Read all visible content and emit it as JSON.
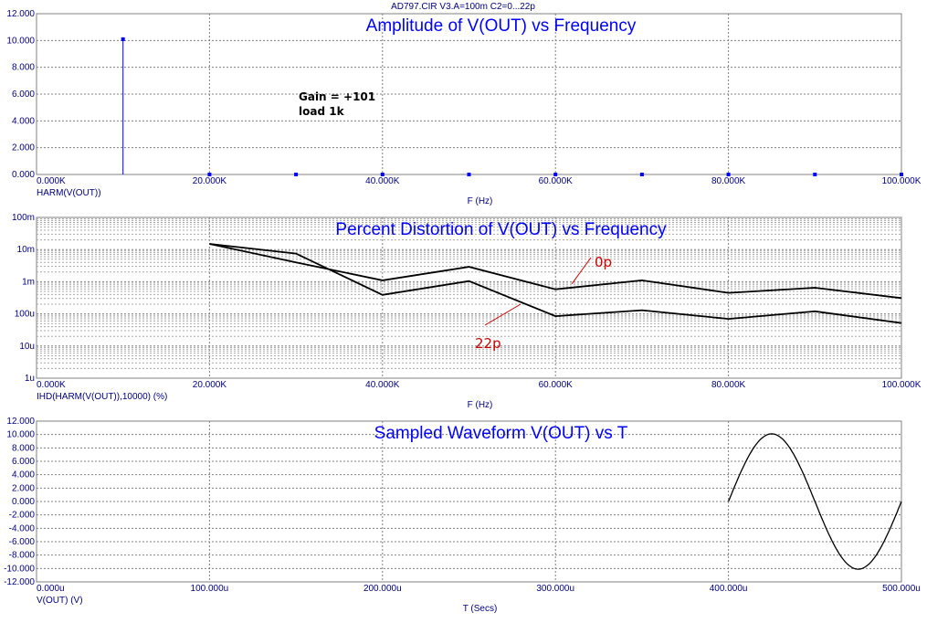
{
  "window": {
    "title": "AD797.CIR V3.A=100m C2=0...22p"
  },
  "colors": {
    "text": "#000080",
    "title": "#0000ff",
    "grid": "#808080",
    "harm": "#0000ff",
    "trace": "#000000",
    "label": "#cc0000"
  },
  "chart_data": [
    {
      "type": "bar",
      "title": "Amplitude of V(OUT) vs Frequency",
      "xlabel": "F (Hz)",
      "ylabel": "HARM(V(OUT))",
      "xlim": [
        0,
        100000
      ],
      "ylim": [
        0,
        12
      ],
      "x_ticks": [
        0,
        20000,
        40000,
        60000,
        80000,
        100000
      ],
      "x_tick_labels": [
        "0.000K",
        "20.000K",
        "40.000K",
        "60.000K",
        "80.000K",
        "100.000K"
      ],
      "y_ticks": [
        0,
        2,
        4,
        6,
        8,
        10,
        12
      ],
      "y_tick_labels": [
        "0.000",
        "2.000",
        "4.000",
        "6.000",
        "8.000",
        "10.000",
        "12.000"
      ],
      "x": [
        10000,
        20000,
        30000,
        40000,
        50000,
        60000,
        70000,
        80000,
        90000,
        100000
      ],
      "values": [
        10.1,
        0.001,
        0.0008,
        0.0004,
        0.0003,
        0.0001,
        0.0001,
        0.0001,
        0.0001,
        5e-05
      ],
      "annotation": [
        "Gain = +101",
        "load 1k"
      ],
      "grid": true
    },
    {
      "type": "line",
      "title": "Percent Distortion of V(OUT) vs Frequency",
      "xlabel": "F (Hz)",
      "ylabel": "IHD(HARM(V(OUT)),10000) (%)",
      "log_y": true,
      "xlim": [
        0,
        100000
      ],
      "ylim": [
        1e-06,
        0.1
      ],
      "x_ticks": [
        0,
        20000,
        40000,
        60000,
        80000,
        100000
      ],
      "x_tick_labels": [
        "0.000K",
        "20.000K",
        "40.000K",
        "60.000K",
        "80.000K",
        "100.000K"
      ],
      "y_ticks": [
        1e-06,
        1e-05,
        0.0001,
        0.001,
        0.01,
        0.1
      ],
      "y_tick_labels": [
        "1u",
        "10u",
        "100u",
        "1m",
        "10m",
        "100m"
      ],
      "x": [
        20000,
        30000,
        40000,
        50000,
        60000,
        70000,
        80000,
        90000,
        100000
      ],
      "series": [
        {
          "name": "0p",
          "values": [
            0.015,
            0.004,
            0.0011,
            0.0029,
            0.00058,
            0.0011,
            0.00045,
            0.00065,
            0.00031
          ]
        },
        {
          "name": "22p",
          "values": [
            0.015,
            0.0075,
            0.00039,
            0.00105,
            8.5e-05,
            0.00013,
            7e-05,
            0.00012,
            5.2e-05
          ]
        }
      ],
      "series_labels": [
        "0p",
        "22p"
      ],
      "grid": true
    },
    {
      "type": "line",
      "title": "Sampled Waveform  V(OUT) vs T",
      "xlabel": "T (Secs)",
      "ylabel": "V(OUT) (V)",
      "xlim": [
        0,
        0.0005
      ],
      "ylim": [
        -12,
        12
      ],
      "x_ticks": [
        0,
        0.0001,
        0.0002,
        0.0003,
        0.0004,
        0.0005
      ],
      "x_tick_labels": [
        "0.000u",
        "100.000u",
        "200.000u",
        "300.000u",
        "400.000u",
        "500.000u"
      ],
      "y_ticks": [
        12,
        10,
        8,
        6,
        4,
        2,
        0,
        -2,
        -4,
        -6,
        -8,
        -10,
        -12
      ],
      "y_tick_labels": [
        "12.000",
        "10.000",
        "8.000",
        "6.000",
        "4.000",
        "2.000",
        "0.000",
        "-2.000",
        "-4.000",
        "-6.000",
        "-8.000",
        "-10.000",
        "-12.000"
      ],
      "waveform": {
        "t_start": 0.0004,
        "t_end": 0.0005,
        "amplitude": 10.1,
        "period": 0.0001
      },
      "grid": true
    }
  ]
}
